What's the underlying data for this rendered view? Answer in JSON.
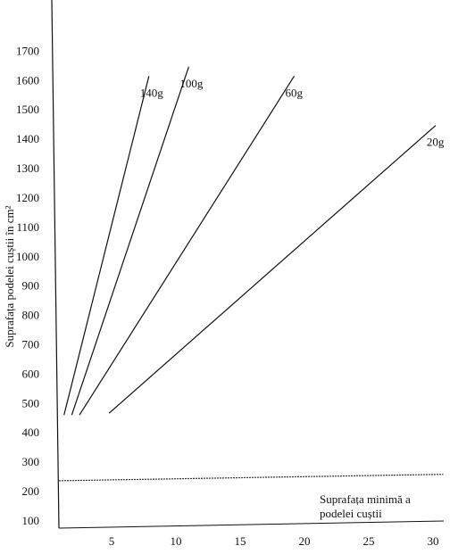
{
  "chart_data": {
    "type": "line",
    "y_label": "Suprafața podelei cuștii în cm²",
    "annotation": [
      "Suprafața minimă a",
      "podelei cuștii"
    ],
    "xlim": [
      0,
      31
    ],
    "xticks": [
      5,
      10,
      15,
      20,
      25,
      30
    ],
    "ylim": [
      100,
      1850
    ],
    "yticks": [
      100,
      200,
      300,
      400,
      500,
      600,
      700,
      800,
      900,
      1000,
      1100,
      1200,
      1300,
      1400,
      1500,
      1600,
      1700
    ],
    "series": [
      {
        "name": "140g",
        "color": "#111111",
        "x": [
          1.3,
          7.9
        ],
        "values": [
          464,
          1618
        ]
      },
      {
        "name": "100g",
        "color": "#111111",
        "x": [
          1.9,
          11.0
        ],
        "values": [
          464,
          1650
        ]
      },
      {
        "name": "60g",
        "color": "#111111",
        "x": [
          2.5,
          19.2
        ],
        "values": [
          464,
          1618
        ]
      },
      {
        "name": "20g",
        "color": "#111111",
        "x": [
          4.8,
          30.2
        ],
        "values": [
          470,
          1450
        ]
      }
    ],
    "min_line": {
      "color": "#333333",
      "x": [
        0.9,
        30.8
      ],
      "values": [
        240,
        262
      ]
    }
  }
}
